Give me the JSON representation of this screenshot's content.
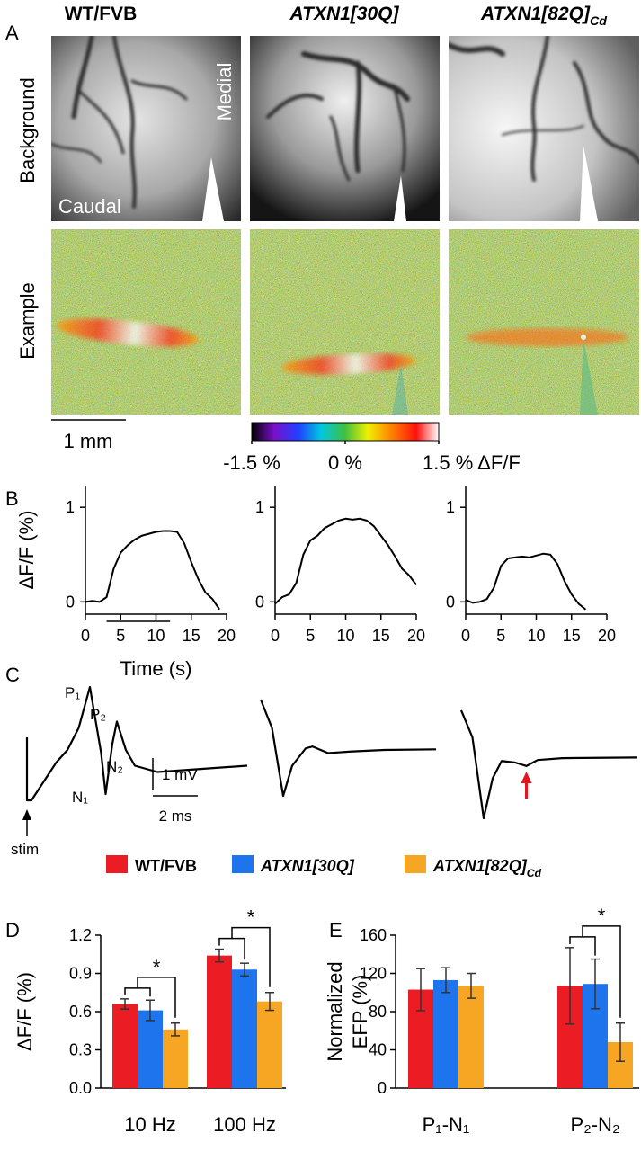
{
  "panel_labels": [
    "A",
    "B",
    "C",
    "D",
    "E"
  ],
  "columns": [
    {
      "base": "WT/FVB"
    },
    {
      "base": "ATXN1[30Q]"
    },
    {
      "base": "ATXN1[82Q]",
      "sub": "Cd"
    }
  ],
  "rows": [
    "Background",
    "Example"
  ],
  "image_labels": [
    "Medial",
    "Caudal"
  ],
  "scale_bar": "1 mm",
  "colorbar": {
    "lim": [
      -1.5,
      1.5
    ],
    "ticks": [
      {
        "value": -1.5,
        "label": "-1.5 %"
      },
      {
        "value": 0,
        "label": "0 %"
      },
      {
        "value": 1.5,
        "label": "1.5 % ΔF/F"
      }
    ]
  },
  "chart_data": [
    {
      "type": "line",
      "xlabel": "Time (s)",
      "ylabel": "ΔF/F (%)",
      "stimulus": [
        3,
        12
      ],
      "x": [
        0,
        1,
        2,
        3,
        4,
        5,
        6,
        7,
        8,
        9,
        10,
        11,
        12,
        13,
        14,
        15,
        16,
        17,
        18,
        19
      ],
      "values": [
        0,
        0.01,
        0,
        0.05,
        0.35,
        0.52,
        0.6,
        0.66,
        0.7,
        0.72,
        0.74,
        0.75,
        0.75,
        0.74,
        0.62,
        0.42,
        0.24,
        0.1,
        0.03,
        -0.08
      ],
      "color": "#000000",
      "xlim": [
        0,
        20
      ],
      "xticks": [
        0,
        5,
        10,
        15,
        20
      ],
      "ylim": [
        -0.13,
        1.23
      ],
      "yticks": [
        0,
        1
      ]
    },
    {
      "type": "line",
      "x": [
        0,
        1,
        2,
        3,
        4,
        5,
        6,
        7,
        8,
        9,
        10,
        11,
        12,
        13,
        14,
        15,
        16,
        17,
        18,
        19,
        20
      ],
      "values": [
        -0.02,
        0.05,
        0.08,
        0.2,
        0.5,
        0.65,
        0.7,
        0.78,
        0.82,
        0.86,
        0.88,
        0.87,
        0.88,
        0.86,
        0.8,
        0.7,
        0.6,
        0.48,
        0.35,
        0.28,
        0.18
      ],
      "color": "#000000",
      "xlim": [
        0,
        20
      ],
      "xticks": [
        0,
        5,
        10,
        15,
        20
      ],
      "ylim": [
        -0.13,
        1.23
      ],
      "yticks": [
        0,
        1
      ]
    },
    {
      "type": "line",
      "x": [
        0,
        1,
        2,
        3,
        4,
        5,
        6,
        7,
        8,
        9,
        10,
        11,
        12,
        13,
        14,
        15,
        16,
        17
      ],
      "values": [
        0.02,
        -0.01,
        0,
        0.03,
        0.15,
        0.38,
        0.46,
        0.47,
        0.48,
        0.47,
        0.49,
        0.51,
        0.5,
        0.4,
        0.22,
        0.08,
        -0.02,
        -0.08
      ],
      "color": "#000000",
      "xlim": [
        0,
        20
      ],
      "xticks": [
        0,
        5,
        10,
        15,
        20
      ],
      "ylim": [
        -0.13,
        1.23
      ],
      "yticks": [
        0,
        1
      ]
    },
    {
      "type": "trace",
      "labels": [
        "P₁",
        "P₂",
        "N₁",
        "N₂",
        "stim"
      ],
      "scalebar": {
        "x": {
          "value": 2,
          "label": "2 ms"
        },
        "y": {
          "value": 1,
          "label": "1 mV"
        }
      },
      "x": [
        0.2,
        0.2,
        0.4,
        1.5,
        2.0,
        2.5,
        3.0,
        3.5,
        3.7,
        4.0,
        4.2,
        4.6,
        5.0,
        6.0,
        8.0,
        10.0
      ],
      "values": [
        1.0,
        -1.0,
        -1.0,
        0.2,
        0.6,
        1.3,
        2.6,
        0.5,
        -0.8,
        0.8,
        1.5,
        0.6,
        0.1,
        -0.1,
        0.0,
        0.1
      ],
      "color": "#000000"
    },
    {
      "type": "trace",
      "x": [
        0,
        0.5,
        1.0,
        1.4,
        2.0,
        2.3,
        3.0,
        4.0,
        5.5,
        7.8
      ],
      "values": [
        2.2,
        1.3,
        -0.86,
        0.1,
        0.65,
        0.71,
        0.5,
        0.55,
        0.6,
        0.62
      ],
      "color": "#000000"
    },
    {
      "type": "trace",
      "marker": {
        "x": 2.9,
        "color": "#e8141c"
      },
      "x": [
        0,
        0.5,
        1.0,
        1.4,
        1.8,
        2.4,
        2.9,
        3.4,
        4.5,
        7.8
      ],
      "values": [
        1.86,
        1.0,
        -1.57,
        -0.3,
        0.25,
        0.2,
        0.09,
        0.28,
        0.34,
        0.36
      ],
      "color": "#000000"
    },
    {
      "type": "bar",
      "legend": true,
      "ylabel": "ΔF/F (%)",
      "categories": [
        "10 Hz",
        "100 Hz"
      ],
      "series": [
        {
          "name": "WT/FVB",
          "color": "#ec1c24",
          "values": [
            0.66,
            1.04
          ],
          "errors": [
            0.04,
            0.05
          ]
        },
        {
          "name": "ATXN1[30Q]",
          "color": "#1e74ec",
          "values": [
            0.61,
            0.93
          ],
          "errors": [
            0.08,
            0.05
          ]
        },
        {
          "name": {
            "base": "ATXN1[82Q]",
            "sub": "Cd"
          },
          "color": "#f6a623",
          "values": [
            0.46,
            0.68
          ],
          "errors": [
            0.05,
            0.07
          ]
        }
      ],
      "significance": [
        "*",
        "*"
      ],
      "ylim": [
        0,
        1.2
      ],
      "yticks": [
        {
          "value": 0,
          "label": "0.0"
        },
        0.3,
        0.6,
        0.9,
        1.2
      ]
    },
    {
      "type": "bar",
      "ylabel": [
        "Normalized",
        "EFP (%)"
      ],
      "categories": [
        "P₁-N₁",
        "P₂-N₂"
      ],
      "series": [
        {
          "color": "#ec1c24",
          "values": [
            103,
            107
          ],
          "errors": [
            22,
            40
          ]
        },
        {
          "color": "#1e74ec",
          "values": [
            113,
            109
          ],
          "errors": [
            13,
            26
          ]
        },
        {
          "color": "#f6a623",
          "values": [
            107,
            48
          ],
          "errors": [
            13,
            20
          ]
        }
      ],
      "significance": [
        null,
        "*"
      ],
      "ylim": [
        0,
        160
      ],
      "yticks": [
        0,
        40,
        80,
        120,
        160
      ]
    }
  ]
}
